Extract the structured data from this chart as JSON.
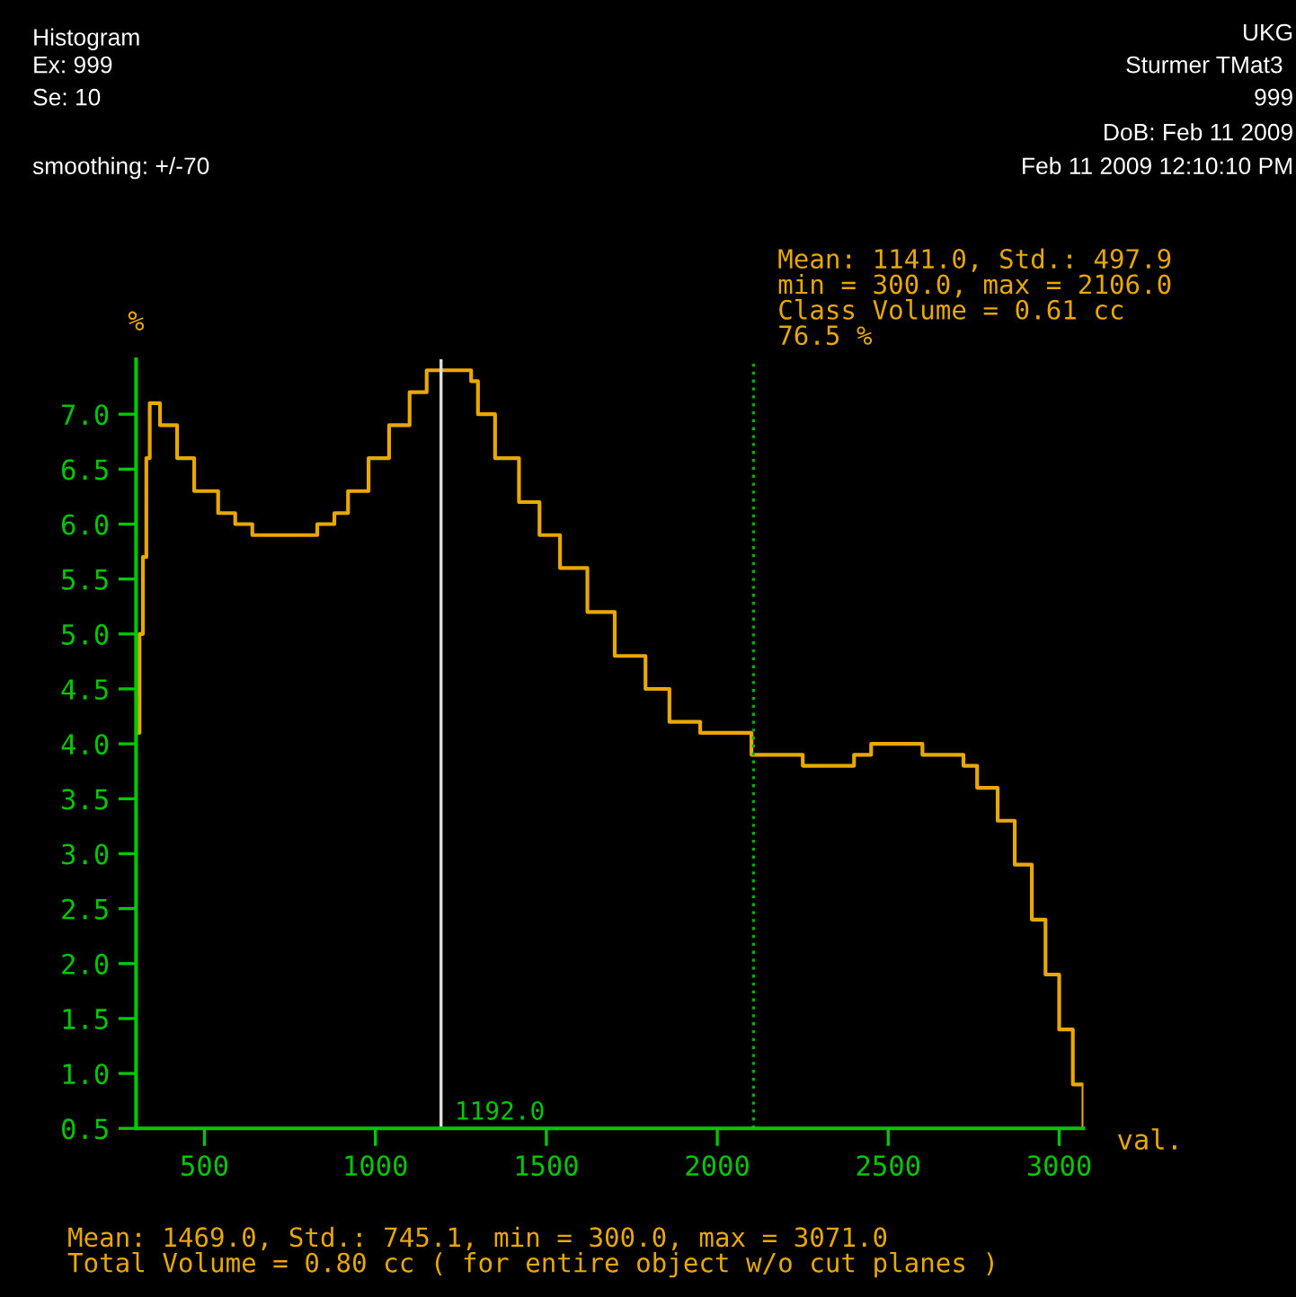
{
  "chart_data": {
    "type": "step",
    "title": "Histogram",
    "ylabel": "%",
    "xlabel": "val.",
    "annotations": [
      "Ex: 999",
      "Se: 10",
      "smoothing: +/-70",
      "UKG",
      "Sturmer TMat3",
      "999",
      "DoB: Feb 11 2009",
      "Feb 11 2009 12:10:10 PM",
      "Mean: 1141.0, Std.: 497.9\nmin = 300.0, max = 2106.0\nClass Volume = 0.61 cc\n76.5 %",
      "Mean: 1469.0, Std.: 745.1, min = 300.0, max = 3071.0\nTotal Volume = 0.80 cc ( for entire object w/o cut planes )"
    ],
    "x": [
      300,
      310,
      320,
      330,
      340,
      370,
      420,
      470,
      540,
      590,
      640,
      830,
      880,
      920,
      980,
      1040,
      1100,
      1150,
      1280,
      1300,
      1350,
      1420,
      1480,
      1540,
      1620,
      1700,
      1790,
      1860,
      1950,
      2000,
      2100,
      2250,
      2400,
      2450,
      2600,
      2720,
      2760,
      2820,
      2870,
      2920,
      2960,
      3000,
      3040,
      3071
    ],
    "series": [
      {
        "color": "#e8a800",
        "values": [
          4.1,
          5.0,
          5.7,
          6.6,
          7.1,
          6.9,
          6.6,
          6.3,
          6.1,
          6.0,
          5.9,
          6.0,
          6.1,
          6.3,
          6.6,
          6.9,
          7.2,
          7.4,
          7.3,
          7.0,
          6.6,
          6.2,
          5.9,
          5.6,
          5.2,
          4.8,
          4.5,
          4.2,
          4.1,
          4.1,
          3.9,
          3.8,
          3.9,
          4.0,
          3.9,
          3.8,
          3.6,
          3.3,
          2.9,
          2.4,
          1.9,
          1.4,
          0.9,
          0.5
        ]
      }
    ],
    "xlim": [
      300,
      3071
    ],
    "ylim": [
      0.5,
      7.5
    ],
    "xticks": [
      500,
      1000,
      1500,
      2000,
      2500,
      3000
    ],
    "yticks": [
      0.5,
      {
        "value": 1,
        "label": "1.0"
      },
      1.5,
      {
        "value": 2,
        "label": "2.0"
      },
      2.5,
      {
        "value": 3,
        "label": "3.0"
      },
      3.5,
      {
        "value": 4,
        "label": "4.0"
      },
      4.5,
      {
        "value": 5,
        "label": "5.0"
      },
      5.5,
      {
        "value": 6,
        "label": "6.0"
      },
      6.5,
      {
        "value": 7,
        "label": "7.0"
      }
    ],
    "ref_lines": [
      {
        "axis": "x",
        "value": 1192,
        "label": "1192.0",
        "color": "#e0e0e0",
        "line_style": "solid"
      },
      {
        "axis": "x",
        "value": 2106,
        "color": "#00b000",
        "line_style": "dotted"
      }
    ],
    "grid": false,
    "legend": false
  }
}
